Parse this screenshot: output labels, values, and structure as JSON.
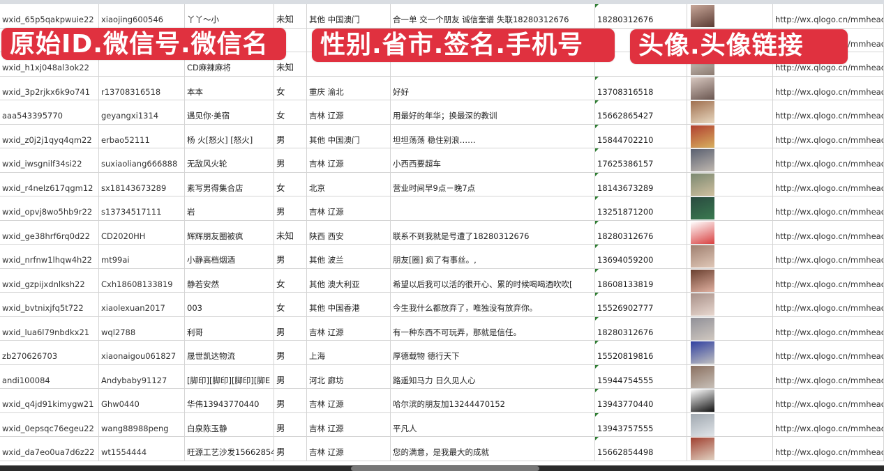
{
  "banners": [
    "原始ID.微信号.微信名",
    "性别.省市.签名.手机号",
    "头像.头像链接"
  ],
  "colors": {
    "banner": "#e0313f",
    "grid": "#d4d4d4",
    "comment_marker": "#2e7d32"
  },
  "rows": [
    {
      "id": "wxid_65p5qakpwuie22",
      "wx": "xiaojing600546",
      "name": "丫丫～小",
      "gender": "未知",
      "region": "其他 中国澳门",
      "sign": "合一单 交一个朋友 诚信奎谱 失联18280312676",
      "phone": "18280312676",
      "avatar": "avatar-image",
      "url": "http://wx.qlogo.cn/mmhead"
    },
    {
      "id": "",
      "wx": "",
      "name": "",
      "gender": "",
      "region": "",
      "sign": "",
      "phone": "",
      "avatar": "avatar-image",
      "url": "http://wx.qlogo.cn/mmhead"
    },
    {
      "id": "wxid_h1xj048al3ok22",
      "wx": "",
      "name": "CD麻辣麻将",
      "gender": "未知",
      "region": "",
      "sign": "",
      "phone": "",
      "avatar": "avatar-image",
      "url": "http://wx.qlogo.cn/mmhead"
    },
    {
      "id": "wxid_3p2rjkx6k9o741",
      "wx": "r13708316518",
      "name": "本本",
      "gender": "女",
      "region": "重庆 渝北",
      "sign": "好好",
      "phone": "13708316518",
      "avatar": "avatar-image",
      "url": "http://wx.qlogo.cn/mmhead"
    },
    {
      "id": "aaa543395770",
      "wx": "geyangxi1314",
      "name": "遇见你·美宿",
      "gender": "女",
      "region": "吉林 辽源",
      "sign": "用最好的年华；换最深的教训",
      "phone": "15662865427",
      "avatar": "avatar-image",
      "url": "http://wx.qlogo.cn/mmhead"
    },
    {
      "id": "wxid_z0j2j1qyq4qm22",
      "wx": "erbao52111",
      "name": "杨 火[怒火] [怒火]",
      "gender": "男",
      "region": "其他 中国澳门",
      "sign": "坦坦荡荡 稳住别浪……",
      "phone": "15844702210",
      "avatar": "avatar-image",
      "url": "http://wx.qlogo.cn/mmhead"
    },
    {
      "id": "wxid_iwsgnilf34si22",
      "wx": "suxiaoliang666888",
      "name": "无敌风火轮",
      "gender": "男",
      "region": "吉林 辽源",
      "sign": "小西西要超车",
      "phone": "17625386157",
      "avatar": "avatar-image",
      "url": "http://wx.qlogo.cn/mmhead"
    },
    {
      "id": "wxid_r4nelz617qgm12",
      "wx": "sx18143673289",
      "name": "素写男得集合店",
      "gender": "女",
      "region": "北京",
      "sign": "营业时间早9点－晚7点",
      "phone": "18143673289",
      "avatar": "avatar-image",
      "url": "http://wx.qlogo.cn/mmhead"
    },
    {
      "id": "wxid_opvj8wo5hb9r22",
      "wx": "s13734517111",
      "name": "岩",
      "gender": "男",
      "region": "吉林 辽源",
      "sign": "",
      "phone": "13251871200",
      "avatar": "avatar-image",
      "url": "http://wx.qlogo.cn/mmhead"
    },
    {
      "id": "wxid_ge38hrf6rq0d22",
      "wx": "CD2020HH",
      "name": "辉辉朋友圈被疯",
      "gender": "未知",
      "region": "陕西 西安",
      "sign": "联系不到我就是号遭了18280312676",
      "phone": "18280312676",
      "avatar": "avatar-image",
      "url": "http://wx.qlogo.cn/mmhead"
    },
    {
      "id": "wxid_nrfnw1lhqw4h22",
      "wx": "mt99ai",
      "name": "小静高档烟酒",
      "gender": "男",
      "region": "其他 波兰",
      "sign": "朋友[圈] 疯了有事丝。,",
      "phone": "13694059200",
      "avatar": "avatar-image",
      "url": "http://wx.qlogo.cn/mmhead"
    },
    {
      "id": "wxid_gzpijxdnlksh22",
      "wx": "Cxh18608133819",
      "name": "静若安然",
      "gender": "女",
      "region": "其他 澳大利亚",
      "sign": "希望以后我可以活的很开心、累的时候喝喝酒吹吹[",
      "phone": "18608133819",
      "avatar": "avatar-image",
      "url": "http://wx.qlogo.cn/mmhead"
    },
    {
      "id": "wxid_bvtnixjfq5t722",
      "wx": "xiaolexuan2017",
      "name": "003",
      "gender": "女",
      "region": "其他 中国香港",
      "sign": "今生我什么都放弃了，唯独没有放弃你。",
      "phone": "15526902777",
      "avatar": "avatar-image",
      "url": "http://wx.qlogo.cn/mmhead"
    },
    {
      "id": "wxid_lua6l79nbdkx21",
      "wx": "wql2788",
      "name": "利哥",
      "gender": "男",
      "region": "吉林 辽源",
      "sign": "有一种东西不可玩弄，那就是信任。",
      "phone": "18280312676",
      "avatar": "avatar-image",
      "url": "http://wx.qlogo.cn/mmhead"
    },
    {
      "id": "zb270626703",
      "wx": "xiaonaigou061827",
      "name": "晟世凯达物流",
      "gender": "男",
      "region": "上海",
      "sign": "厚德载物 德行天下",
      "phone": "15520819816",
      "avatar": "avatar-image",
      "url": "http://wx.qlogo.cn/mmhead"
    },
    {
      "id": "andi100084",
      "wx": "Andybaby91127",
      "name": "[脚印][脚印][脚印][脚E",
      "gender": "男",
      "region": "河北 廊坊",
      "sign": "路遥知马力 日久见人心",
      "phone": "15944754555",
      "avatar": "avatar-image",
      "url": "http://wx.qlogo.cn/mmhead"
    },
    {
      "id": "wxid_q4jd91kimygw21",
      "wx": "Ghw0440",
      "name": "华伟13943770440",
      "gender": "男",
      "region": "吉林 辽源",
      "sign": "哈尔滨的朋友加13244470152",
      "phone": "13943770440",
      "avatar": "avatar-image",
      "url": "http://wx.qlogo.cn/mmhead"
    },
    {
      "id": "wxid_0epsqc76egeu22",
      "wx": "wang88988peng",
      "name": "白泉陈玉静",
      "gender": "男",
      "region": "吉林 辽源",
      "sign": "平凡人",
      "phone": "13943757555",
      "avatar": "avatar-image",
      "url": "http://wx.qlogo.cn/mmhead"
    },
    {
      "id": "wxid_da7eo0ua7d6z22",
      "wx": "wt1554444",
      "name": "旺源工艺沙发15662854",
      "gender": "男",
      "region": "吉林 辽源",
      "sign": "您的满意，是我最大的成就",
      "phone": "15662854498",
      "avatar": "avatar-image",
      "url": "http://wx.qlogo.cn/mmhead"
    }
  ]
}
